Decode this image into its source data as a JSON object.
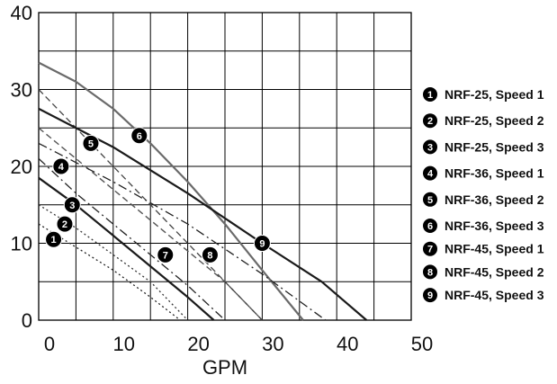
{
  "chart_data": {
    "type": "line",
    "xlabel": "GPM",
    "ylabel": "",
    "xlim": [
      0,
      50
    ],
    "ylim": [
      0,
      40
    ],
    "xticks": [
      "0",
      "10",
      "20",
      "30",
      "40",
      "50"
    ],
    "yticks": [
      "0",
      "10",
      "20",
      "30",
      "40"
    ],
    "grid": true,
    "legend_position": "right",
    "series": [
      {
        "name": "NRF-25, Speed 1",
        "marker": "1",
        "color": "#222222",
        "dash": "2,3",
        "width": 1.3,
        "x": [
          0,
          5,
          10,
          15,
          19
        ],
        "y": [
          12.5,
          9.5,
          6.5,
          3,
          0
        ],
        "marker_at": [
          2,
          10.5
        ]
      },
      {
        "name": "NRF-25, Speed 2",
        "marker": "2",
        "color": "#333333",
        "dash": "2,3",
        "width": 1.3,
        "x": [
          0,
          5,
          10,
          15,
          20
        ],
        "y": [
          15,
          12,
          8.5,
          5,
          0
        ],
        "marker_at": [
          3.5,
          12.5
        ]
      },
      {
        "name": "NRF-25, Speed 3",
        "marker": "3",
        "color": "#1a1a1a",
        "dash": "",
        "width": 2.2,
        "x": [
          0,
          5,
          10,
          15,
          20,
          23.5
        ],
        "y": [
          18.5,
          15,
          11,
          7,
          3,
          0
        ],
        "marker_at": [
          4.5,
          15
        ]
      },
      {
        "name": "NRF-36, Speed 1",
        "marker": "4",
        "color": "#222222",
        "dash": "10,4,2,4",
        "width": 1.3,
        "x": [
          0,
          5,
          10,
          15,
          20,
          25
        ],
        "y": [
          21,
          16.5,
          12.5,
          8.5,
          4.5,
          0
        ],
        "marker_at": [
          3,
          20
        ]
      },
      {
        "name": "NRF-36, Speed 2",
        "marker": "5",
        "color": "#555555",
        "dash": "7,4",
        "width": 1.4,
        "x": [
          0,
          5,
          10,
          15,
          20,
          25,
          30
        ],
        "y": [
          25,
          21,
          17,
          13,
          9,
          5,
          0
        ],
        "marker_at": [
          7,
          23
        ]
      },
      {
        "name": "NRF-36, Speed 3",
        "marker": "6",
        "color": "#6a6a6a",
        "dash": "",
        "width": 2.2,
        "x": [
          0,
          5,
          10,
          15,
          20,
          25,
          30,
          35.5
        ],
        "y": [
          33.5,
          31,
          27.5,
          23,
          18,
          12.5,
          6.5,
          0
        ],
        "marker_at": [
          13.5,
          24
        ]
      },
      {
        "name": "NRF-45, Speed 1",
        "marker": "7",
        "color": "#444444",
        "dash": "7,4",
        "width": 1.3,
        "x": [
          0,
          10,
          20,
          30
        ],
        "y": [
          30,
          20,
          10,
          0
        ],
        "marker_at": [
          17,
          8.5
        ]
      },
      {
        "name": "NRF-45, Speed 2",
        "marker": "8",
        "color": "#222222",
        "dash": "10,4,2,4",
        "width": 1.3,
        "x": [
          0,
          10,
          20,
          30,
          38.5
        ],
        "y": [
          23,
          18,
          12.5,
          6,
          0
        ],
        "marker_at": [
          23,
          8.5
        ]
      },
      {
        "name": "NRF-45, Speed 3",
        "marker": "9",
        "color": "#1a1a1a",
        "dash": "",
        "width": 2.2,
        "x": [
          0,
          10,
          20,
          30,
          38,
          44
        ],
        "y": [
          27.5,
          22.5,
          16.5,
          10,
          5,
          0
        ],
        "marker_at": [
          30,
          10
        ]
      }
    ]
  }
}
